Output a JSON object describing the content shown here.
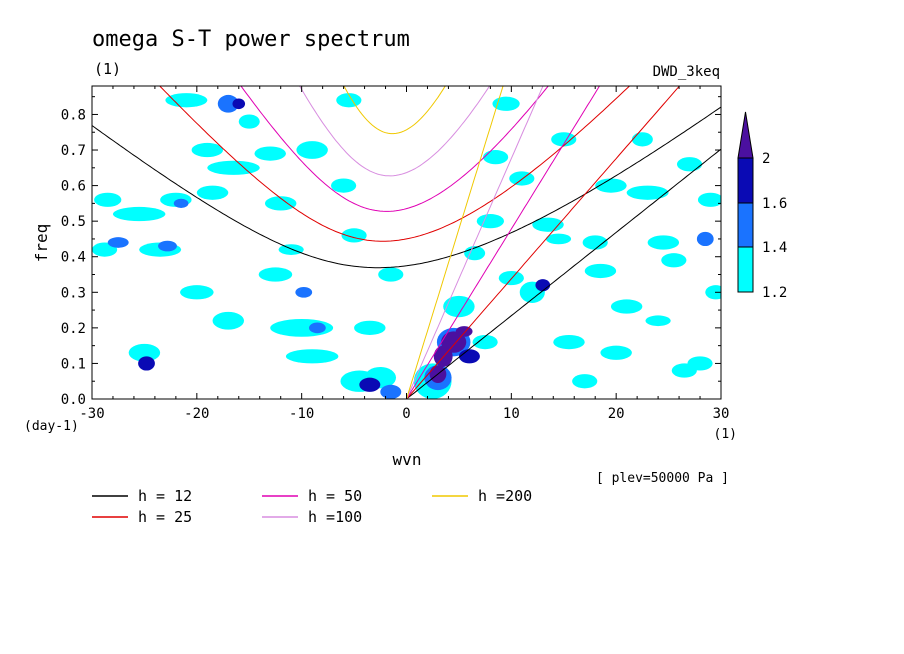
{
  "chart_data": {
    "type": "contour",
    "title": "omega S-T power spectrum",
    "units_label": "(1)",
    "dataset_label": "DWD_3keq",
    "level_label": "[ plev=50000 Pa ]",
    "xlabel": "wvn",
    "ylabel": "freq",
    "x_units": "(1)",
    "y_units": "(day-1)",
    "xlim": [
      -30,
      30
    ],
    "ylim": [
      0,
      0.88
    ],
    "x_ticks": [
      -30,
      -20,
      -10,
      0,
      10,
      20,
      30
    ],
    "x_tick_labels": [
      "-30",
      "-20",
      "-10",
      "0",
      "10",
      "20",
      "30"
    ],
    "y_ticks": [
      0,
      0.1,
      0.2,
      0.3,
      0.4,
      0.5,
      0.6,
      0.7,
      0.8
    ],
    "y_tick_labels": [
      "0.0",
      "0.1",
      "0.2",
      "0.3",
      "0.4",
      "0.5",
      "0.6",
      "0.7",
      "0.8"
    ],
    "colorbar": {
      "levels": [
        1.2,
        1.4,
        1.6,
        2
      ],
      "level_labels": [
        "1.2",
        "1.4",
        "1.6",
        "2"
      ],
      "colors": [
        "#00ffff",
        "#1a73ff",
        "#0a0ab4",
        "#4b10a0"
      ]
    },
    "dispersion_curves": [
      {
        "label": "h = 12",
        "h": 12,
        "color": "#000000"
      },
      {
        "label": "h = 25",
        "h": 25,
        "color": "#e00000"
      },
      {
        "label": "h = 50",
        "h": 50,
        "color": "#e000b4"
      },
      {
        "label": "h =100",
        "h": 100,
        "color": "#d88ee0"
      },
      {
        "label": "h =200",
        "h": 200,
        "color": "#f0c800"
      }
    ],
    "contour_blobs": [
      {
        "k": -28.5,
        "f": 0.56,
        "rk": 1.3,
        "rf": 0.02,
        "level": 0
      },
      {
        "k": -28.8,
        "f": 0.42,
        "rk": 1.2,
        "rf": 0.02,
        "level": 0
      },
      {
        "k": -27.5,
        "f": 0.44,
        "rk": 1.0,
        "rf": 0.015,
        "level": 1
      },
      {
        "k": -25.5,
        "f": 0.52,
        "rk": 2.5,
        "rf": 0.02,
        "level": 0
      },
      {
        "k": -25,
        "f": 0.13,
        "rk": 1.5,
        "rf": 0.025,
        "level": 0
      },
      {
        "k": -24.8,
        "f": 0.1,
        "rk": 0.8,
        "rf": 0.02,
        "level": 2
      },
      {
        "k": -23.5,
        "f": 0.42,
        "rk": 2.0,
        "rf": 0.02,
        "level": 0
      },
      {
        "k": -22.8,
        "f": 0.43,
        "rk": 0.9,
        "rf": 0.015,
        "level": 1
      },
      {
        "k": -22,
        "f": 0.56,
        "rk": 1.5,
        "rf": 0.02,
        "level": 0
      },
      {
        "k": -21.5,
        "f": 0.55,
        "rk": 0.7,
        "rf": 0.013,
        "level": 1
      },
      {
        "k": -21,
        "f": 0.84,
        "rk": 2.0,
        "rf": 0.02,
        "level": 0
      },
      {
        "k": -20,
        "f": 0.3,
        "rk": 1.6,
        "rf": 0.02,
        "level": 0
      },
      {
        "k": -19,
        "f": 0.7,
        "rk": 1.5,
        "rf": 0.02,
        "level": 0
      },
      {
        "k": -18.5,
        "f": 0.58,
        "rk": 1.5,
        "rf": 0.02,
        "level": 0
      },
      {
        "k": -17,
        "f": 0.83,
        "rk": 1.0,
        "rf": 0.025,
        "level": 1
      },
      {
        "k": -17,
        "f": 0.22,
        "rk": 1.5,
        "rf": 0.025,
        "level": 0
      },
      {
        "k": -16.5,
        "f": 0.65,
        "rk": 2.5,
        "rf": 0.02,
        "level": 0
      },
      {
        "k": -16,
        "f": 0.83,
        "rk": 0.6,
        "rf": 0.015,
        "level": 2
      },
      {
        "k": -15,
        "f": 0.78,
        "rk": 1.0,
        "rf": 0.02,
        "level": 0
      },
      {
        "k": -13,
        "f": 0.69,
        "rk": 1.5,
        "rf": 0.02,
        "level": 0
      },
      {
        "k": -12.5,
        "f": 0.35,
        "rk": 1.6,
        "rf": 0.02,
        "level": 0
      },
      {
        "k": -12,
        "f": 0.55,
        "rk": 1.5,
        "rf": 0.02,
        "level": 0
      },
      {
        "k": -11,
        "f": 0.42,
        "rk": 1.2,
        "rf": 0.015,
        "level": 0
      },
      {
        "k": -10,
        "f": 0.2,
        "rk": 3.0,
        "rf": 0.025,
        "level": 0
      },
      {
        "k": -9.8,
        "f": 0.3,
        "rk": 0.8,
        "rf": 0.015,
        "level": 1
      },
      {
        "k": -9,
        "f": 0.12,
        "rk": 2.5,
        "rf": 0.02,
        "level": 0
      },
      {
        "k": -9,
        "f": 0.7,
        "rk": 1.5,
        "rf": 0.025,
        "level": 0
      },
      {
        "k": -8.5,
        "f": 0.2,
        "rk": 0.8,
        "rf": 0.015,
        "level": 1
      },
      {
        "k": -6,
        "f": 0.6,
        "rk": 1.2,
        "rf": 0.02,
        "level": 0
      },
      {
        "k": -5.5,
        "f": 0.84,
        "rk": 1.2,
        "rf": 0.02,
        "level": 0
      },
      {
        "k": -5,
        "f": 0.46,
        "rk": 1.2,
        "rf": 0.02,
        "level": 0
      },
      {
        "k": -4.5,
        "f": 0.05,
        "rk": 1.8,
        "rf": 0.03,
        "level": 0
      },
      {
        "k": -3.5,
        "f": 0.04,
        "rk": 1.0,
        "rf": 0.02,
        "level": 2
      },
      {
        "k": -3.5,
        "f": 0.2,
        "rk": 1.5,
        "rf": 0.02,
        "level": 0
      },
      {
        "k": -2.5,
        "f": 0.06,
        "rk": 1.5,
        "rf": 0.03,
        "level": 0
      },
      {
        "k": -1.5,
        "f": 0.35,
        "rk": 1.2,
        "rf": 0.02,
        "level": 0
      },
      {
        "k": -1.5,
        "f": 0.02,
        "rk": 1.0,
        "rf": 0.02,
        "level": 1
      },
      {
        "k": 2.5,
        "f": 0.05,
        "rk": 1.8,
        "rf": 0.05,
        "level": 0
      },
      {
        "k": 3,
        "f": 0.06,
        "rk": 1.3,
        "rf": 0.035,
        "level": 1
      },
      {
        "k": 3,
        "f": 0.07,
        "rk": 0.8,
        "rf": 0.025,
        "level": 3
      },
      {
        "k": 3.5,
        "f": 0.12,
        "rk": 0.9,
        "rf": 0.03,
        "level": 3
      },
      {
        "k": 4.5,
        "f": 0.16,
        "rk": 1.6,
        "rf": 0.04,
        "level": 1
      },
      {
        "k": 4.5,
        "f": 0.16,
        "rk": 1.2,
        "rf": 0.03,
        "level": 3
      },
      {
        "k": 5,
        "f": 0.26,
        "rk": 1.5,
        "rf": 0.03,
        "level": 0
      },
      {
        "k": 5.5,
        "f": 0.19,
        "rk": 0.8,
        "rf": 0.015,
        "level": 3
      },
      {
        "k": 6,
        "f": 0.12,
        "rk": 1.0,
        "rf": 0.02,
        "level": 2
      },
      {
        "k": 6.5,
        "f": 0.41,
        "rk": 1.0,
        "rf": 0.02,
        "level": 0
      },
      {
        "k": 7.5,
        "f": 0.16,
        "rk": 1.2,
        "rf": 0.02,
        "level": 0
      },
      {
        "k": 8,
        "f": 0.5,
        "rk": 1.3,
        "rf": 0.02,
        "level": 0
      },
      {
        "k": 8.5,
        "f": 0.68,
        "rk": 1.2,
        "rf": 0.02,
        "level": 0
      },
      {
        "k": 9.5,
        "f": 0.83,
        "rk": 1.3,
        "rf": 0.02,
        "level": 0
      },
      {
        "k": 10,
        "f": 0.34,
        "rk": 1.2,
        "rf": 0.02,
        "level": 0
      },
      {
        "k": 11,
        "f": 0.62,
        "rk": 1.2,
        "rf": 0.02,
        "level": 0
      },
      {
        "k": 12,
        "f": 0.3,
        "rk": 1.2,
        "rf": 0.03,
        "level": 0
      },
      {
        "k": 13,
        "f": 0.32,
        "rk": 0.7,
        "rf": 0.017,
        "level": 2
      },
      {
        "k": 13.5,
        "f": 0.49,
        "rk": 1.5,
        "rf": 0.02,
        "level": 0
      },
      {
        "k": 14.5,
        "f": 0.45,
        "rk": 1.2,
        "rf": 0.015,
        "level": 0
      },
      {
        "k": 15,
        "f": 0.73,
        "rk": 1.2,
        "rf": 0.02,
        "level": 0
      },
      {
        "k": 15.5,
        "f": 0.16,
        "rk": 1.5,
        "rf": 0.02,
        "level": 0
      },
      {
        "k": 17,
        "f": 0.05,
        "rk": 1.2,
        "rf": 0.02,
        "level": 0
      },
      {
        "k": 18,
        "f": 0.44,
        "rk": 1.2,
        "rf": 0.02,
        "level": 0
      },
      {
        "k": 18.5,
        "f": 0.36,
        "rk": 1.5,
        "rf": 0.02,
        "level": 0
      },
      {
        "k": 19.5,
        "f": 0.6,
        "rk": 1.5,
        "rf": 0.02,
        "level": 0
      },
      {
        "k": 20,
        "f": 0.13,
        "rk": 1.5,
        "rf": 0.02,
        "level": 0
      },
      {
        "k": 21,
        "f": 0.26,
        "rk": 1.5,
        "rf": 0.02,
        "level": 0
      },
      {
        "k": 22.5,
        "f": 0.73,
        "rk": 1.0,
        "rf": 0.02,
        "level": 0
      },
      {
        "k": 23,
        "f": 0.58,
        "rk": 2.0,
        "rf": 0.02,
        "level": 0
      },
      {
        "k": 24,
        "f": 0.22,
        "rk": 1.2,
        "rf": 0.015,
        "level": 0
      },
      {
        "k": 24.5,
        "f": 0.44,
        "rk": 1.5,
        "rf": 0.02,
        "level": 0
      },
      {
        "k": 25.5,
        "f": 0.39,
        "rk": 1.2,
        "rf": 0.02,
        "level": 0
      },
      {
        "k": 26.5,
        "f": 0.08,
        "rk": 1.2,
        "rf": 0.02,
        "level": 0
      },
      {
        "k": 27,
        "f": 0.66,
        "rk": 1.2,
        "rf": 0.02,
        "level": 0
      },
      {
        "k": 28,
        "f": 0.1,
        "rk": 1.2,
        "rf": 0.02,
        "level": 0
      },
      {
        "k": 28.5,
        "f": 0.45,
        "rk": 0.8,
        "rf": 0.02,
        "level": 1
      },
      {
        "k": 29,
        "f": 0.56,
        "rk": 1.2,
        "rf": 0.02,
        "level": 0
      },
      {
        "k": 29.5,
        "f": 0.3,
        "rk": 1.0,
        "rf": 0.02,
        "level": 0
      }
    ]
  }
}
